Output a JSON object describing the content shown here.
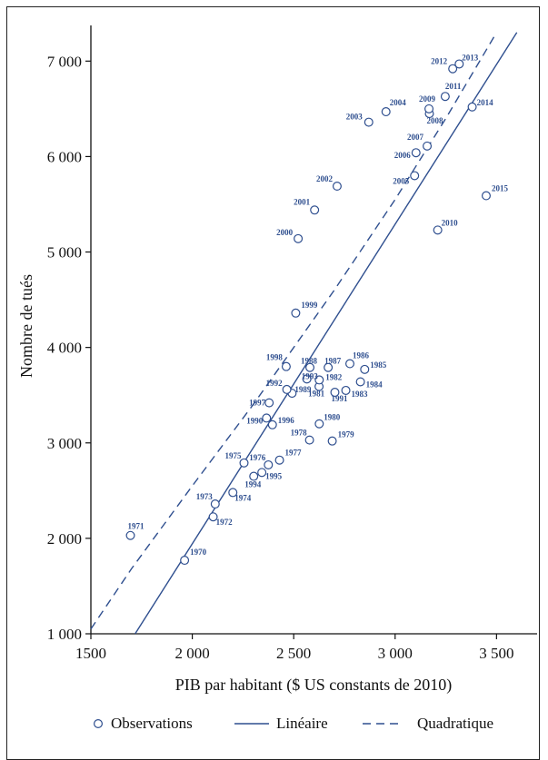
{
  "chart_data": {
    "type": "scatter",
    "title": "",
    "xlabel": "PIB par habitant ($ US constants de 2010)",
    "ylabel": "Nombre de tués",
    "xlim": [
      1500,
      3700
    ],
    "ylim": [
      1000,
      7450
    ],
    "x_ticks": [
      {
        "value": 1500,
        "label": "1500"
      },
      {
        "value": 2000,
        "label": "2 000"
      },
      {
        "value": 2500,
        "label": "2 500"
      },
      {
        "value": 3000,
        "label": "3 000"
      },
      {
        "value": 3500,
        "label": "3 500"
      }
    ],
    "y_ticks": [
      {
        "value": 1000,
        "label": "1 000"
      },
      {
        "value": 2000,
        "label": "2 000"
      },
      {
        "value": 3000,
        "label": "3 000"
      },
      {
        "value": 4000,
        "label": "4 000"
      },
      {
        "value": 5000,
        "label": "5 000"
      },
      {
        "value": 6000,
        "label": "6 000"
      },
      {
        "value": 7000,
        "label": "7 000"
      }
    ],
    "grid": false,
    "legend_position": "bottom",
    "colors": {
      "marker": "#2f4f8f",
      "line": "#2f4f8f",
      "label": "#2f4f8f"
    },
    "series": [
      {
        "name": "Observations",
        "kind": "scatter",
        "points": [
          {
            "year": "1970",
            "x": 1962,
            "y": 1770
          },
          {
            "year": "1971",
            "x": 1695,
            "y": 2030
          },
          {
            "year": "1972",
            "x": 2103,
            "y": 2225
          },
          {
            "year": "1973",
            "x": 2113,
            "y": 2360
          },
          {
            "year": "1974",
            "x": 2200,
            "y": 2480
          },
          {
            "year": "1975",
            "x": 2255,
            "y": 2790
          },
          {
            "year": "1976",
            "x": 2375,
            "y": 2770
          },
          {
            "year": "1977",
            "x": 2430,
            "y": 2820
          },
          {
            "year": "1978",
            "x": 2578,
            "y": 3030
          },
          {
            "year": "1979",
            "x": 2690,
            "y": 3020
          },
          {
            "year": "1980",
            "x": 2626,
            "y": 3200
          },
          {
            "year": "1981",
            "x": 2625,
            "y": 3590
          },
          {
            "year": "1982",
            "x": 2626,
            "y": 3660
          },
          {
            "year": "1983",
            "x": 2757,
            "y": 3550
          },
          {
            "year": "1984",
            "x": 2829,
            "y": 3640
          },
          {
            "year": "1985",
            "x": 2850,
            "y": 3770
          },
          {
            "year": "1986",
            "x": 2777,
            "y": 3830
          },
          {
            "year": "1987",
            "x": 2670,
            "y": 3790
          },
          {
            "year": "1988",
            "x": 2580,
            "y": 3790
          },
          {
            "year": "1989",
            "x": 2492,
            "y": 3520
          },
          {
            "year": "1990",
            "x": 2366,
            "y": 3260
          },
          {
            "year": "1991",
            "x": 2703,
            "y": 3530
          },
          {
            "year": "1992",
            "x": 2466,
            "y": 3560
          },
          {
            "year": "1993",
            "x": 2565,
            "y": 3670
          },
          {
            "year": "1994",
            "x": 2303,
            "y": 2650
          },
          {
            "year": "1995",
            "x": 2343,
            "y": 2690
          },
          {
            "year": "1996",
            "x": 2395,
            "y": 3190
          },
          {
            "year": "1997",
            "x": 2379,
            "y": 3420
          },
          {
            "year": "1998",
            "x": 2463,
            "y": 3800
          },
          {
            "year": "1999",
            "x": 2510,
            "y": 4360
          },
          {
            "year": "2000",
            "x": 2522,
            "y": 5140
          },
          {
            "year": "2001",
            "x": 2603,
            "y": 5440
          },
          {
            "year": "2002",
            "x": 2714,
            "y": 5690
          },
          {
            "year": "2003",
            "x": 2870,
            "y": 6360
          },
          {
            "year": "2004",
            "x": 2955,
            "y": 6470
          },
          {
            "year": "2005",
            "x": 3096,
            "y": 5800
          },
          {
            "year": "2006",
            "x": 3103,
            "y": 6040
          },
          {
            "year": "2007",
            "x": 3158,
            "y": 6110
          },
          {
            "year": "2008",
            "x": 3169,
            "y": 6450
          },
          {
            "year": "2009",
            "x": 3167,
            "y": 6500
          },
          {
            "year": "2010",
            "x": 3210,
            "y": 5230
          },
          {
            "year": "2011",
            "x": 3247,
            "y": 6630
          },
          {
            "year": "2012",
            "x": 3284,
            "y": 6920
          },
          {
            "year": "2013",
            "x": 3316,
            "y": 6970
          },
          {
            "year": "2014",
            "x": 3380,
            "y": 6520
          },
          {
            "year": "2015",
            "x": 3449,
            "y": 5590
          }
        ]
      },
      {
        "name": "Linéaire",
        "kind": "line",
        "dash": "solid",
        "points": [
          {
            "x": 1718,
            "y": 1000
          },
          {
            "x": 3600,
            "y": 7300
          }
        ]
      },
      {
        "name": "Quadratique",
        "kind": "line",
        "dash": "dashed",
        "points": [
          {
            "x": 1500,
            "y": 1050
          },
          {
            "x": 1700,
            "y": 1680
          },
          {
            "x": 2000,
            "y": 2550
          },
          {
            "x": 2300,
            "y": 3400
          },
          {
            "x": 2500,
            "y": 4000
          },
          {
            "x": 2700,
            "y": 4600
          },
          {
            "x": 3000,
            "y": 5550
          },
          {
            "x": 3250,
            "y": 6400
          },
          {
            "x": 3500,
            "y": 7300
          }
        ]
      }
    ],
    "legend": [
      {
        "label": "Observations",
        "symbol": "circle"
      },
      {
        "label": "Linéaire",
        "symbol": "solid-line"
      },
      {
        "label": "Quadratique",
        "symbol": "dashed-line"
      }
    ]
  }
}
